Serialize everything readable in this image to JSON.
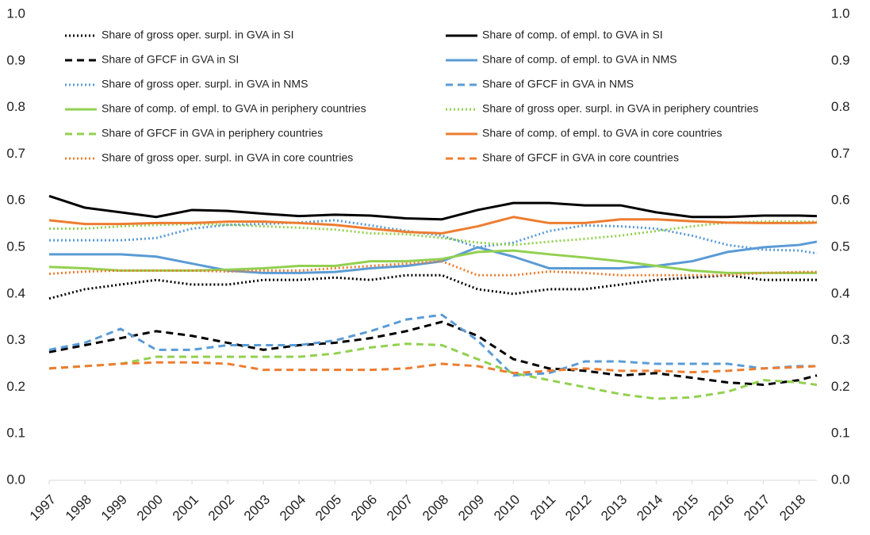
{
  "chart_data": {
    "type": "line",
    "x": [
      1997,
      1998,
      1999,
      2000,
      2001,
      2002,
      2003,
      2004,
      2005,
      2006,
      2007,
      2008,
      2009,
      2010,
      2011,
      2012,
      2013,
      2014,
      2015,
      2016,
      2017,
      2018,
      2018.5
    ],
    "xlim": [
      1997,
      2018.5
    ],
    "xticks": [
      1997,
      1998,
      1999,
      2000,
      2001,
      2002,
      2003,
      2004,
      2005,
      2006,
      2007,
      2008,
      2009,
      2010,
      2011,
      2012,
      2013,
      2014,
      2015,
      2016,
      2017,
      2018
    ],
    "ylim": [
      0,
      1
    ],
    "yticks": [
      {
        "value": 0,
        "label": "0.0"
      },
      0.1,
      0.2,
      0.3,
      0.4,
      0.5,
      0.6,
      0.7,
      0.8,
      0.9,
      {
        "value": 1,
        "label": "1.0"
      }
    ],
    "y2lim": [
      0,
      1
    ],
    "y2ticks": [
      {
        "value": 0,
        "label": "0.0"
      },
      0.1,
      0.2,
      0.3,
      0.4,
      0.5,
      0.6,
      0.7,
      0.8,
      0.9,
      {
        "value": 1,
        "label": "1.0"
      }
    ],
    "grid": false,
    "series": [
      {
        "name": "Share of gross oper. surpl. in GVA in SI",
        "color": "#000000",
        "dash": "dotted",
        "values": [
          0.39,
          0.41,
          0.42,
          0.43,
          0.42,
          0.42,
          0.43,
          0.43,
          0.435,
          0.43,
          0.44,
          0.44,
          0.41,
          0.4,
          0.41,
          0.41,
          0.42,
          0.43,
          0.435,
          0.44,
          0.43,
          0.43,
          0.43
        ]
      },
      {
        "name": "Share of comp. of empl. to GVA in SI",
        "color": "#000000",
        "dash": "solid",
        "values": [
          0.61,
          0.585,
          0.575,
          0.565,
          0.58,
          0.578,
          0.572,
          0.567,
          0.57,
          0.568,
          0.562,
          0.56,
          0.58,
          0.595,
          0.595,
          0.59,
          0.59,
          0.575,
          0.565,
          0.565,
          0.568,
          0.568,
          0.567
        ]
      },
      {
        "name": "Share of GFCF in GVA in SI",
        "color": "#000000",
        "dash": "dashed",
        "values": [
          0.275,
          0.29,
          0.305,
          0.32,
          0.31,
          0.295,
          0.28,
          0.29,
          0.295,
          0.305,
          0.32,
          0.34,
          0.31,
          0.26,
          0.24,
          0.235,
          0.225,
          0.23,
          0.22,
          0.21,
          0.205,
          0.215,
          0.225
        ]
      },
      {
        "name": "Share of comp. of empl. to GVA in NMS",
        "color": "#5b9bd5",
        "dash": "solid",
        "values": [
          0.485,
          0.485,
          0.485,
          0.48,
          0.465,
          0.45,
          0.445,
          0.445,
          0.447,
          0.455,
          0.46,
          0.47,
          0.5,
          0.48,
          0.455,
          0.455,
          0.455,
          0.46,
          0.47,
          0.49,
          0.5,
          0.505,
          0.512
        ]
      },
      {
        "name": "Share of gross oper. surpl. in GVA in NMS",
        "color": "#5b9bd5",
        "dash": "dotted",
        "values": [
          0.515,
          0.515,
          0.515,
          0.52,
          0.54,
          0.548,
          0.55,
          0.553,
          0.558,
          0.547,
          0.535,
          0.525,
          0.5,
          0.51,
          0.535,
          0.547,
          0.545,
          0.54,
          0.525,
          0.505,
          0.495,
          0.493,
          0.487
        ]
      },
      {
        "name": "Share of GFCF in GVA in NMS",
        "color": "#5b9bd5",
        "dash": "dashed",
        "values": [
          0.28,
          0.295,
          0.325,
          0.28,
          0.28,
          0.29,
          0.29,
          0.29,
          0.3,
          0.32,
          0.345,
          0.355,
          0.3,
          0.225,
          0.23,
          0.255,
          0.255,
          0.25,
          0.25,
          0.25,
          0.24,
          0.245,
          0.245
        ]
      },
      {
        "name": "Share of comp. of empl. to GVA in periphery countries",
        "color": "#92d050",
        "dash": "solid",
        "values": [
          0.458,
          0.455,
          0.45,
          0.45,
          0.45,
          0.452,
          0.455,
          0.46,
          0.46,
          0.47,
          0.47,
          0.475,
          0.49,
          0.493,
          0.485,
          0.478,
          0.47,
          0.46,
          0.45,
          0.445,
          0.445,
          0.445,
          0.445
        ]
      },
      {
        "name": "Share of gross oper. surpl. in GVA in periphery countries",
        "color": "#92d050",
        "dash": "dotted",
        "values": [
          0.54,
          0.54,
          0.545,
          0.548,
          0.55,
          0.548,
          0.545,
          0.542,
          0.538,
          0.53,
          0.528,
          0.52,
          0.51,
          0.505,
          0.512,
          0.518,
          0.525,
          0.535,
          0.545,
          0.553,
          0.555,
          0.555,
          0.555
        ]
      },
      {
        "name": "Share of GFCF in GVA in periphery countries",
        "color": "#92d050",
        "dash": "dashed",
        "values": [
          0.24,
          0.245,
          0.25,
          0.265,
          0.265,
          0.265,
          0.265,
          0.265,
          0.272,
          0.285,
          0.293,
          0.29,
          0.26,
          0.23,
          0.215,
          0.2,
          0.185,
          0.175,
          0.178,
          0.19,
          0.215,
          0.21,
          0.205
        ]
      },
      {
        "name": "Share of comp. of empl. to GVA in core countries",
        "color": "#ed7d31",
        "dash": "solid",
        "values": [
          0.558,
          0.55,
          0.55,
          0.552,
          0.552,
          0.555,
          0.555,
          0.552,
          0.548,
          0.54,
          0.533,
          0.53,
          0.545,
          0.565,
          0.552,
          0.552,
          0.56,
          0.56,
          0.556,
          0.553,
          0.552,
          0.552,
          0.553
        ]
      },
      {
        "name": "Share of gross oper. surpl. in GVA in core countries",
        "color": "#ed7d31",
        "dash": "dotted",
        "values": [
          0.443,
          0.448,
          0.45,
          0.45,
          0.45,
          0.448,
          0.45,
          0.45,
          0.455,
          0.46,
          0.465,
          0.47,
          0.44,
          0.44,
          0.448,
          0.445,
          0.44,
          0.44,
          0.44,
          0.44,
          0.445,
          0.447,
          0.447
        ]
      },
      {
        "name": "Share of GFCF in GVA in core countries",
        "color": "#ed7d31",
        "dash": "dashed",
        "values": [
          0.24,
          0.245,
          0.25,
          0.253,
          0.253,
          0.25,
          0.237,
          0.237,
          0.237,
          0.237,
          0.24,
          0.25,
          0.245,
          0.23,
          0.235,
          0.24,
          0.235,
          0.235,
          0.232,
          0.235,
          0.24,
          0.243,
          0.245
        ]
      }
    ]
  }
}
